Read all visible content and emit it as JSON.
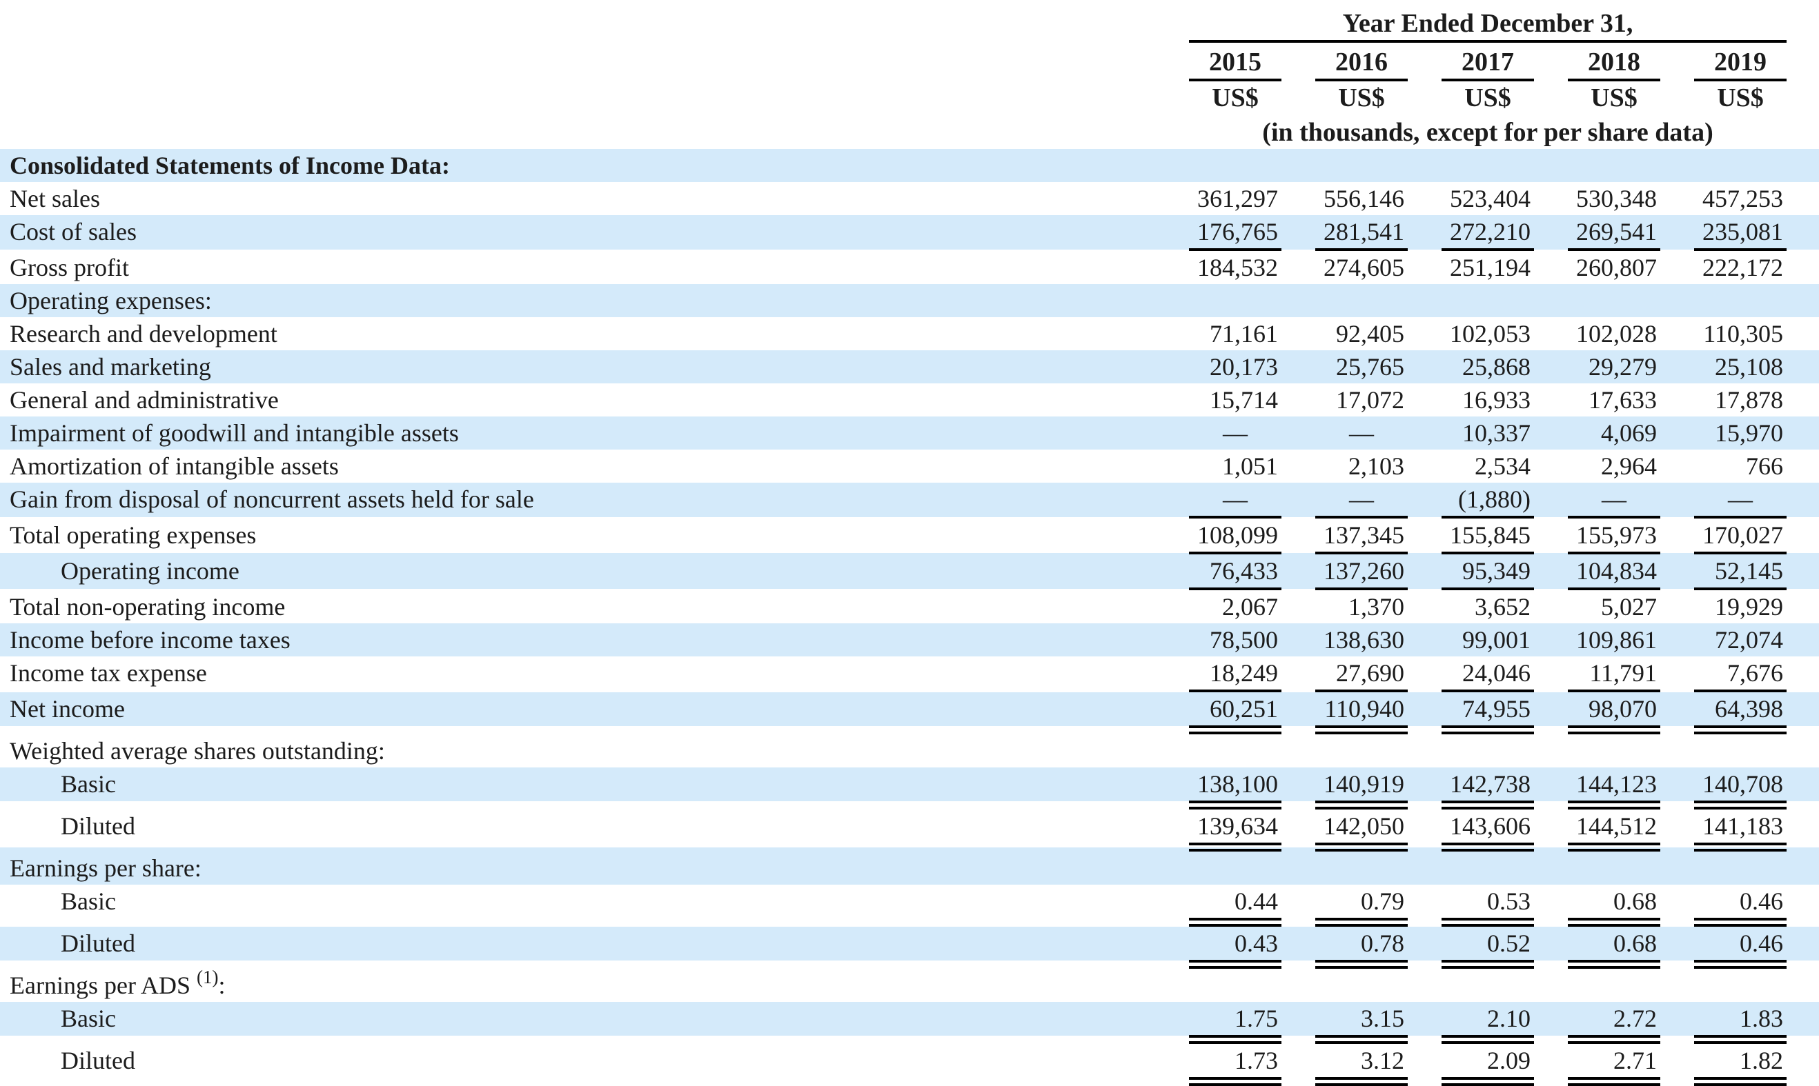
{
  "title": "Consolidated Statements of Income Data",
  "colors": {
    "row_highlight": "#d4eafa",
    "text": "#1c1c1c",
    "rule": "#000000"
  },
  "header": {
    "year_ended_label": "Year Ended December 31,",
    "years": [
      "2015",
      "2016",
      "2017",
      "2018",
      "2019"
    ],
    "currency_labels": [
      "US$",
      "US$",
      "US$",
      "US$",
      "US$"
    ],
    "units_note": "(in thousands, except for per share data)"
  },
  "rows": [
    {
      "label": "Consolidated Statements of Income Data:",
      "values": [
        "",
        "",
        "",
        "",
        ""
      ],
      "shade": true,
      "bold": true,
      "indent": 0,
      "rule": "none"
    },
    {
      "label": "Net sales",
      "values": [
        "361,297",
        "556,146",
        "523,404",
        "530,348",
        "457,253"
      ],
      "shade": false,
      "bold": false,
      "indent": 0,
      "rule": "none"
    },
    {
      "label": "Cost of sales",
      "values": [
        "176,765",
        "281,541",
        "272,210",
        "269,541",
        "235,081"
      ],
      "shade": true,
      "bold": false,
      "indent": 0,
      "rule": "single"
    },
    {
      "label": "Gross profit",
      "values": [
        "184,532",
        "274,605",
        "251,194",
        "260,807",
        "222,172"
      ],
      "shade": false,
      "bold": false,
      "indent": 0,
      "rule": "none"
    },
    {
      "label": "Operating expenses:",
      "values": [
        "",
        "",
        "",
        "",
        ""
      ],
      "shade": true,
      "bold": false,
      "indent": 0,
      "rule": "none"
    },
    {
      "label": "Research and development",
      "values": [
        "71,161",
        "92,405",
        "102,053",
        "102,028",
        "110,305"
      ],
      "shade": false,
      "bold": false,
      "indent": 0,
      "rule": "none"
    },
    {
      "label": "Sales and marketing",
      "values": [
        "20,173",
        "25,765",
        "25,868",
        "29,279",
        "25,108"
      ],
      "shade": true,
      "bold": false,
      "indent": 0,
      "rule": "none"
    },
    {
      "label": "General and administrative",
      "values": [
        "15,714",
        "17,072",
        "16,933",
        "17,633",
        "17,878"
      ],
      "shade": false,
      "bold": false,
      "indent": 0,
      "rule": "none"
    },
    {
      "label": "Impairment of goodwill and intangible assets",
      "values": [
        "—",
        "—",
        "10,337",
        "4,069",
        "15,970"
      ],
      "shade": true,
      "bold": false,
      "indent": 0,
      "rule": "none"
    },
    {
      "label": "Amortization of intangible assets",
      "values": [
        "1,051",
        "2,103",
        "2,534",
        "2,964",
        "766"
      ],
      "shade": false,
      "bold": false,
      "indent": 0,
      "rule": "none"
    },
    {
      "label": "Gain from disposal of noncurrent assets held for sale",
      "values": [
        "—",
        "—",
        "(1,880)",
        "—",
        "—"
      ],
      "shade": true,
      "bold": false,
      "indent": 0,
      "rule": "single"
    },
    {
      "label": "Total operating expenses",
      "values": [
        "108,099",
        "137,345",
        "155,845",
        "155,973",
        "170,027"
      ],
      "shade": false,
      "bold": false,
      "indent": 0,
      "rule": "single"
    },
    {
      "label": "Operating income",
      "values": [
        "76,433",
        "137,260",
        "95,349",
        "104,834",
        "52,145"
      ],
      "shade": true,
      "bold": false,
      "indent": 1,
      "rule": "single"
    },
    {
      "label": "Total non-operating income",
      "values": [
        "2,067",
        "1,370",
        "3,652",
        "5,027",
        "19,929"
      ],
      "shade": false,
      "bold": false,
      "indent": 0,
      "rule": "none"
    },
    {
      "label": "Income before income taxes",
      "values": [
        "78,500",
        "138,630",
        "99,001",
        "109,861",
        "72,074"
      ],
      "shade": true,
      "bold": false,
      "indent": 0,
      "rule": "none"
    },
    {
      "label": "Income tax expense",
      "values": [
        "18,249",
        "27,690",
        "24,046",
        "11,791",
        "7,676"
      ],
      "shade": false,
      "bold": false,
      "indent": 0,
      "rule": "single"
    },
    {
      "label": "Net income",
      "values": [
        "60,251",
        "110,940",
        "74,955",
        "98,070",
        "64,398"
      ],
      "shade": true,
      "bold": false,
      "indent": 0,
      "rule": "double"
    },
    {
      "label": "Weighted average shares outstanding:",
      "values": [
        "",
        "",
        "",
        "",
        ""
      ],
      "shade": false,
      "bold": false,
      "indent": 0,
      "rule": "none"
    },
    {
      "label": "Basic",
      "values": [
        "138,100",
        "140,919",
        "142,738",
        "144,123",
        "140,708"
      ],
      "shade": true,
      "bold": false,
      "indent": 1,
      "rule": "double"
    },
    {
      "label": "Diluted",
      "values": [
        "139,634",
        "142,050",
        "143,606",
        "144,512",
        "141,183"
      ],
      "shade": false,
      "bold": false,
      "indent": 1,
      "rule": "double"
    },
    {
      "label": "Earnings per share:",
      "values": [
        "",
        "",
        "",
        "",
        ""
      ],
      "shade": true,
      "bold": false,
      "indent": 0,
      "rule": "none"
    },
    {
      "label": "Basic",
      "values": [
        "0.44",
        "0.79",
        "0.53",
        "0.68",
        "0.46"
      ],
      "shade": false,
      "bold": false,
      "indent": 1,
      "rule": "double"
    },
    {
      "label": "Diluted",
      "values": [
        "0.43",
        "0.78",
        "0.52",
        "0.68",
        "0.46"
      ],
      "shade": true,
      "bold": false,
      "indent": 1,
      "rule": "double"
    },
    {
      "label": "Earnings per ADS",
      "sup": "(1)",
      "suffix": ":",
      "values": [
        "",
        "",
        "",
        "",
        ""
      ],
      "shade": false,
      "bold": false,
      "indent": 0,
      "rule": "none"
    },
    {
      "label": "Basic",
      "values": [
        "1.75",
        "3.15",
        "2.10",
        "2.72",
        "1.83"
      ],
      "shade": true,
      "bold": false,
      "indent": 1,
      "rule": "double"
    },
    {
      "label": "Diluted",
      "values": [
        "1.73",
        "3.12",
        "2.09",
        "2.71",
        "1.82"
      ],
      "shade": false,
      "bold": false,
      "indent": 1,
      "rule": "double"
    }
  ]
}
